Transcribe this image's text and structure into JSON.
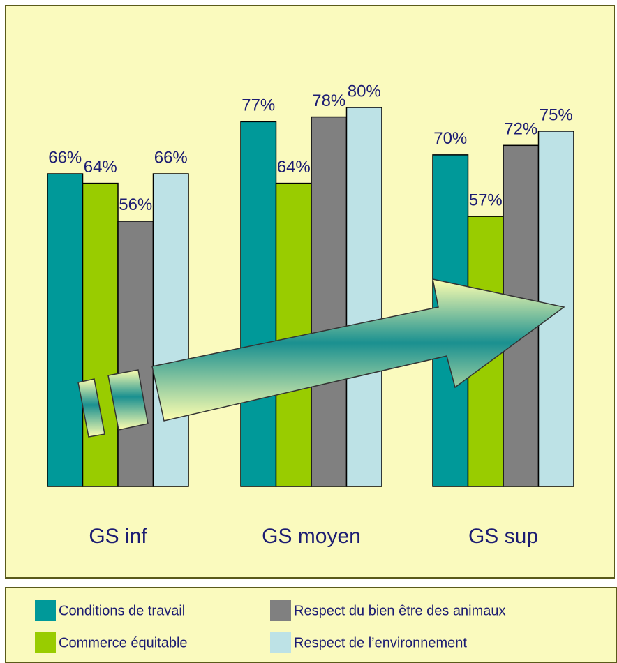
{
  "chart_data": {
    "type": "bar",
    "categories": [
      "GS inf",
      "GS moyen",
      "GS sup"
    ],
    "series": [
      {
        "name": "Conditions de travail",
        "color": "#009999",
        "values": [
          66,
          77,
          70
        ],
        "value_labels": [
          "66%",
          "77%",
          "70%"
        ]
      },
      {
        "name": "Commerce équitable",
        "color": "#99cc00",
        "values": [
          64,
          64,
          57
        ],
        "value_labels": [
          "64%",
          "64%",
          "57%"
        ]
      },
      {
        "name": "Respect du bien être des animaux",
        "color": "#808080",
        "values": [
          56,
          78,
          72
        ],
        "value_labels": [
          "56%",
          "78%",
          "72%"
        ]
      },
      {
        "name": "Respect de l’environnement",
        "color": "#bde2e6",
        "values": [
          66,
          80,
          75
        ],
        "value_labels": [
          "66%",
          "80%",
          "75%"
        ]
      }
    ]
  }
}
